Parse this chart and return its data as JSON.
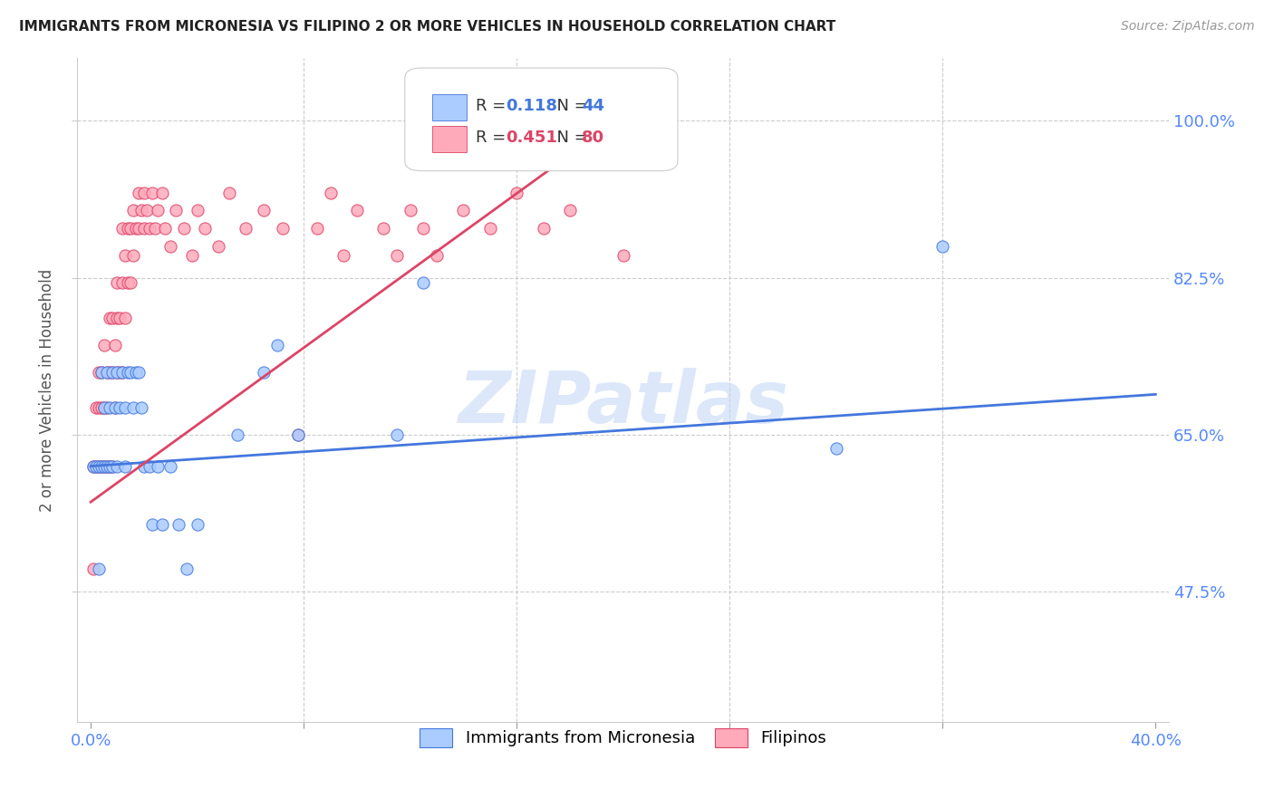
{
  "title": "IMMIGRANTS FROM MICRONESIA VS FILIPINO 2 OR MORE VEHICLES IN HOUSEHOLD CORRELATION CHART",
  "source": "Source: ZipAtlas.com",
  "ylabel": "2 or more Vehicles in Household",
  "ytick_labels": [
    "100.0%",
    "82.5%",
    "65.0%",
    "47.5%"
  ],
  "ytick_values": [
    1.0,
    0.825,
    0.65,
    0.475
  ],
  "xtick_values": [
    0.0,
    0.08,
    0.16,
    0.24,
    0.32,
    0.4
  ],
  "xlim": [
    -0.005,
    0.405
  ],
  "ylim": [
    0.33,
    1.07
  ],
  "r_micronesia": 0.118,
  "n_micronesia": 44,
  "r_filipino": 0.451,
  "n_filipino": 80,
  "color_micronesia": "#aaccff",
  "color_filipino": "#ffaabb",
  "line_color_micronesia": "#4477dd",
  "line_color_filipino": "#dd4466",
  "watermark": "ZIPatlas",
  "legend_label_micronesia": "Immigrants from Micronesia",
  "legend_label_filipino": "Filipinos",
  "mic_line_x": [
    0.0,
    0.4
  ],
  "mic_line_y": [
    0.615,
    0.695
  ],
  "fil_line_x": [
    0.0,
    0.2
  ],
  "fil_line_y": [
    0.575,
    1.005
  ],
  "micronesia_x": [
    0.001,
    0.002,
    0.003,
    0.003,
    0.004,
    0.004,
    0.005,
    0.005,
    0.006,
    0.006,
    0.007,
    0.007,
    0.008,
    0.008,
    0.009,
    0.01,
    0.01,
    0.011,
    0.012,
    0.013,
    0.013,
    0.014,
    0.015,
    0.016,
    0.017,
    0.018,
    0.019,
    0.02,
    0.022,
    0.023,
    0.025,
    0.027,
    0.03,
    0.033,
    0.036,
    0.04,
    0.055,
    0.065,
    0.07,
    0.078,
    0.115,
    0.125,
    0.28,
    0.32
  ],
  "micronesia_y": [
    0.615,
    0.615,
    0.615,
    0.5,
    0.615,
    0.72,
    0.615,
    0.68,
    0.72,
    0.615,
    0.615,
    0.68,
    0.615,
    0.72,
    0.68,
    0.615,
    0.72,
    0.68,
    0.72,
    0.68,
    0.615,
    0.72,
    0.72,
    0.68,
    0.72,
    0.72,
    0.68,
    0.615,
    0.615,
    0.55,
    0.615,
    0.55,
    0.615,
    0.55,
    0.5,
    0.55,
    0.65,
    0.72,
    0.75,
    0.65,
    0.65,
    0.82,
    0.635,
    0.86
  ],
  "filipino_x": [
    0.001,
    0.001,
    0.002,
    0.002,
    0.003,
    0.003,
    0.003,
    0.004,
    0.004,
    0.004,
    0.005,
    0.005,
    0.005,
    0.006,
    0.006,
    0.006,
    0.007,
    0.007,
    0.007,
    0.008,
    0.008,
    0.008,
    0.009,
    0.009,
    0.01,
    0.01,
    0.01,
    0.011,
    0.011,
    0.012,
    0.012,
    0.012,
    0.013,
    0.013,
    0.014,
    0.014,
    0.015,
    0.015,
    0.016,
    0.016,
    0.017,
    0.018,
    0.018,
    0.019,
    0.02,
    0.02,
    0.021,
    0.022,
    0.023,
    0.024,
    0.025,
    0.027,
    0.028,
    0.03,
    0.032,
    0.035,
    0.038,
    0.04,
    0.043,
    0.048,
    0.052,
    0.058,
    0.065,
    0.072,
    0.078,
    0.085,
    0.09,
    0.095,
    0.1,
    0.11,
    0.115,
    0.12,
    0.125,
    0.13,
    0.14,
    0.15,
    0.16,
    0.17,
    0.18,
    0.2
  ],
  "filipino_y": [
    0.615,
    0.5,
    0.615,
    0.68,
    0.615,
    0.68,
    0.72,
    0.615,
    0.68,
    0.72,
    0.615,
    0.68,
    0.75,
    0.615,
    0.68,
    0.72,
    0.615,
    0.72,
    0.78,
    0.615,
    0.72,
    0.78,
    0.68,
    0.75,
    0.72,
    0.78,
    0.82,
    0.72,
    0.78,
    0.72,
    0.82,
    0.88,
    0.78,
    0.85,
    0.82,
    0.88,
    0.82,
    0.88,
    0.85,
    0.9,
    0.88,
    0.88,
    0.92,
    0.9,
    0.88,
    0.92,
    0.9,
    0.88,
    0.92,
    0.88,
    0.9,
    0.92,
    0.88,
    0.86,
    0.9,
    0.88,
    0.85,
    0.9,
    0.88,
    0.86,
    0.92,
    0.88,
    0.9,
    0.88,
    0.65,
    0.88,
    0.92,
    0.85,
    0.9,
    0.88,
    0.85,
    0.9,
    0.88,
    0.85,
    0.9,
    0.88,
    0.92,
    0.88,
    0.9,
    0.85
  ]
}
